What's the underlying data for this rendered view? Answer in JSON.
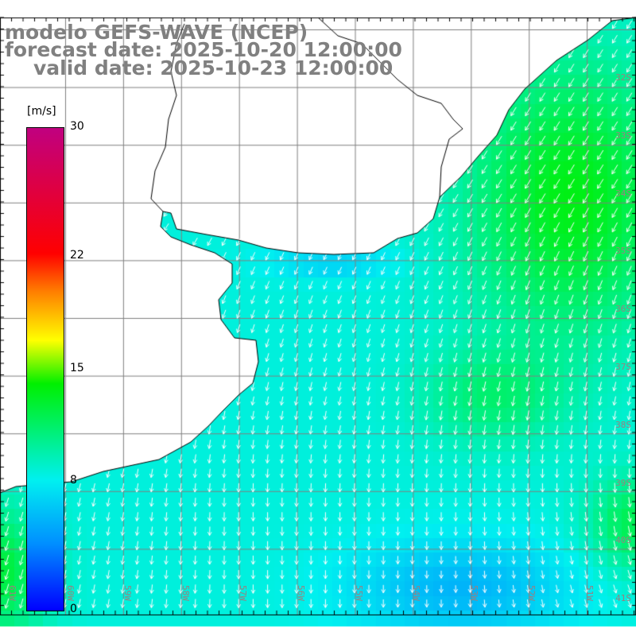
{
  "header": {
    "model": "modelo GEFS-WAVE (NCEP)",
    "forecast": "forecast date: 2025-10-20 12:00:00",
    "valid": "valid date: 2025-10-23 12:00:00"
  },
  "colorbar": {
    "units": "[m/s]",
    "ticks": [
      {
        "label": "30",
        "value": 30
      },
      {
        "label": "22",
        "value": 22
      },
      {
        "label": "15",
        "value": 15
      },
      {
        "label": "8",
        "value": 8
      },
      {
        "label": "0",
        "value": 0
      }
    ],
    "stops": [
      "#0000ff",
      "#0090ff",
      "#00f0f0",
      "#00f000",
      "#ffff00",
      "#ff8000",
      "#ff0000",
      "#c00080"
    ]
  },
  "latitudes": [
    "32S",
    "33S",
    "34S",
    "35S",
    "36S",
    "37S",
    "38S",
    "39S",
    "40S",
    "41S"
  ],
  "longitudes": [
    "61W",
    "60W",
    "59W",
    "58W",
    "57W",
    "56W",
    "55W",
    "54W",
    "53W",
    "52W",
    "51W"
  ],
  "colors": {
    "grid": "#808080",
    "arrow": "#ffffff",
    "coast": "#000000",
    "title": "#808080"
  }
}
